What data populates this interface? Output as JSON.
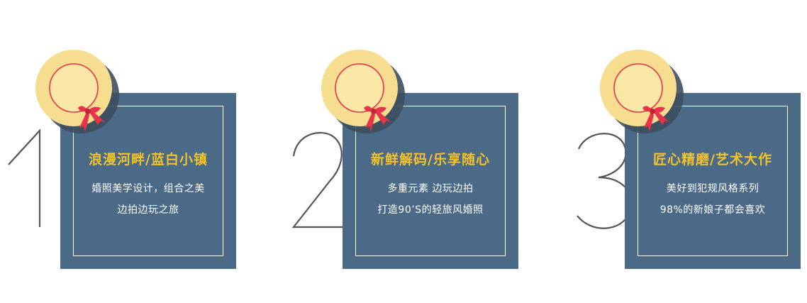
{
  "cards": [
    {
      "number": "1",
      "title": "浪漫河畔/蓝白小镇",
      "line1": "婚照美学设计，组合之美",
      "line2": "边拍边玩之旅",
      "hat_icon": "sun-hat-icon"
    },
    {
      "number": "2",
      "title": "新鲜解码/乐享随心",
      "line1": "多重元素 边玩边拍",
      "line2": "打造90’S的轻旅风婚照",
      "hat_icon": "sun-hat-icon"
    },
    {
      "number": "3",
      "title": "匠心精磨/艺术大作",
      "line1": "美好到犯规风格系列",
      "line2": "98%的新娘子都会喜欢",
      "hat_icon": "sun-hat-icon"
    }
  ],
  "colors": {
    "box": "#4a6a88",
    "title": "#f2c22d",
    "hat": "#f7dd8f",
    "ribbon": "#e8334a",
    "numeral": "#555555"
  }
}
